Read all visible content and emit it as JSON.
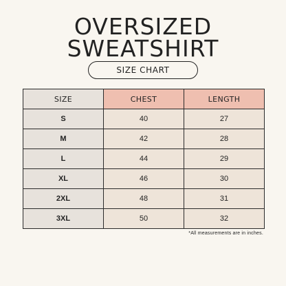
{
  "title": {
    "line1": "OVERSIZED",
    "line2": "SWEATSHIRT"
  },
  "subtitle": "SIZE CHART",
  "table": {
    "headers": [
      "SIZE",
      "CHEST",
      "LENGTH"
    ],
    "rows": [
      {
        "size": "S",
        "chest": "40",
        "length": "27"
      },
      {
        "size": "M",
        "chest": "42",
        "length": "28"
      },
      {
        "size": "L",
        "chest": "44",
        "length": "29"
      },
      {
        "size": "XL",
        "chest": "46",
        "length": "30"
      },
      {
        "size": "2XL",
        "chest": "48",
        "length": "31"
      },
      {
        "size": "3XL",
        "chest": "50",
        "length": "32"
      }
    ]
  },
  "footnote": "*All measurements are in inches.",
  "colors": {
    "background": "#f9f6f0",
    "size_column": "#e7e2dc",
    "header_accent": "#efbfb0",
    "value_cells": "#eee4d9"
  }
}
